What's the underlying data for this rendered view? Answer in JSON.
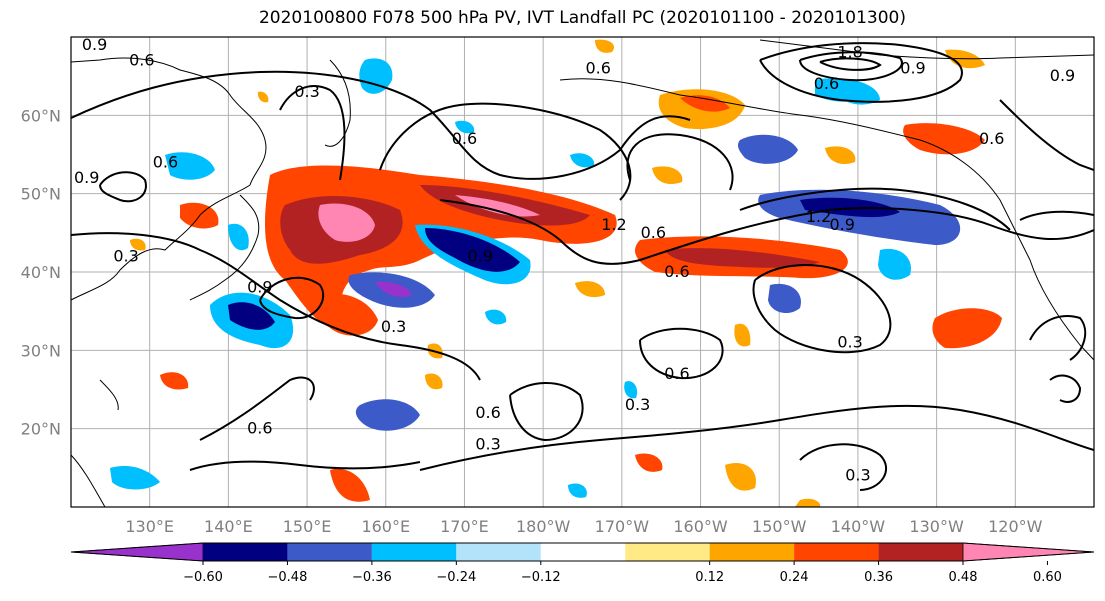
{
  "title": "2020100800 F078 500 hPa PV, IVT Landfall PC (2020101100 - 2020101300)",
  "map": {
    "lat_labels": [
      {
        "text": "60°N",
        "lat": 60
      },
      {
        "text": "50°N",
        "lat": 50
      },
      {
        "text": "40°N",
        "lat": 40
      },
      {
        "text": "30°N",
        "lat": 30
      },
      {
        "text": "20°N",
        "lat": 20
      }
    ],
    "lon_labels": [
      {
        "text": "130°E",
        "lon": 130
      },
      {
        "text": "140°E",
        "lon": 140
      },
      {
        "text": "150°E",
        "lon": 150
      },
      {
        "text": "160°E",
        "lon": 160
      },
      {
        "text": "170°E",
        "lon": 170
      },
      {
        "text": "180°W",
        "lon": 180
      },
      {
        "text": "170°W",
        "lon": 190
      },
      {
        "text": "160°W",
        "lon": 200
      },
      {
        "text": "150°W",
        "lon": 210
      },
      {
        "text": "140°W",
        "lon": 220
      },
      {
        "text": "130°W",
        "lon": 230
      },
      {
        "text": "120°W",
        "lon": 240
      }
    ],
    "contour_labels": [
      {
        "text": "0.9",
        "lon": 123,
        "lat": 69
      },
      {
        "text": "0.6",
        "lon": 129,
        "lat": 67
      },
      {
        "text": "0.3",
        "lon": 150,
        "lat": 63
      },
      {
        "text": "0.6",
        "lon": 187,
        "lat": 66
      },
      {
        "text": "1.8",
        "lon": 219,
        "lat": 68
      },
      {
        "text": "0.9",
        "lon": 227,
        "lat": 66
      },
      {
        "text": "0.6",
        "lon": 216,
        "lat": 64
      },
      {
        "text": "0.9",
        "lon": 246,
        "lat": 65
      },
      {
        "text": "0.6",
        "lon": 237,
        "lat": 57
      },
      {
        "text": "0.6",
        "lon": 170,
        "lat": 57
      },
      {
        "text": "0.6",
        "lon": 132,
        "lat": 54
      },
      {
        "text": "0.9",
        "lon": 122,
        "lat": 52
      },
      {
        "text": "1.2",
        "lon": 189,
        "lat": 46
      },
      {
        "text": "0.6",
        "lon": 194,
        "lat": 45
      },
      {
        "text": "1.2",
        "lon": 215,
        "lat": 47
      },
      {
        "text": "0.9",
        "lon": 218,
        "lat": 46
      },
      {
        "text": "0.9",
        "lon": 172,
        "lat": 42
      },
      {
        "text": "0.6",
        "lon": 197,
        "lat": 40
      },
      {
        "text": "0.3",
        "lon": 127,
        "lat": 42
      },
      {
        "text": "0.9",
        "lon": 144,
        "lat": 38
      },
      {
        "text": "0.3",
        "lon": 161,
        "lat": 33
      },
      {
        "text": "0.3",
        "lon": 219,
        "lat": 31
      },
      {
        "text": "0.6",
        "lon": 197,
        "lat": 27
      },
      {
        "text": "0.3",
        "lon": 192,
        "lat": 23
      },
      {
        "text": "0.6",
        "lon": 173,
        "lat": 22
      },
      {
        "text": "0.3",
        "lon": 173,
        "lat": 18
      },
      {
        "text": "0.6",
        "lon": 144,
        "lat": 20
      },
      {
        "text": "0.3",
        "lon": 220,
        "lat": 14
      }
    ]
  },
  "colorbar": {
    "colors": [
      "#9932cc",
      "#000080",
      "#3c5ac8",
      "#00bfff",
      "#b3e3fb",
      "#ffffff",
      "#ffea85",
      "#ffa500",
      "#ff4500",
      "#b22222",
      "#ff85b3"
    ],
    "ticks": [
      "−0.60",
      "−0.48",
      "−0.36",
      "−0.24",
      "−0.12",
      "0.12",
      "0.24",
      "0.36",
      "0.48",
      "0.60"
    ]
  }
}
